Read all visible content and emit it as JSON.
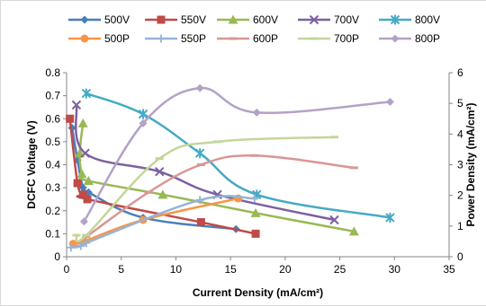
{
  "chart_data": {
    "type": "line",
    "xlabel": "Current Density (mA/cm²)",
    "ylabel_left": "DCFC Voltage (V)",
    "ylabel_right": "Power Density (mA/cm²)",
    "xlim": [
      0,
      35
    ],
    "ylim_left": [
      0,
      0.8
    ],
    "ylim_right": [
      0,
      6
    ],
    "x_ticks": [
      "0",
      "5",
      "10",
      "15",
      "20",
      "25",
      "30",
      "35"
    ],
    "y_left_ticks": [
      "0",
      "0.1",
      "0.2",
      "0.3",
      "0.4",
      "0.5",
      "0.6",
      "0.7",
      "0.8"
    ],
    "y_right_ticks": [
      "0",
      "1",
      "2",
      "3",
      "4",
      "5",
      "6"
    ],
    "grid": false,
    "legend_position": "top",
    "series": [
      {
        "name": "500V",
        "axis": "left",
        "color": "#4a7ebb",
        "marker": "diamond",
        "x": [
          0.5,
          1,
          1.5,
          2,
          7,
          15.5
        ],
        "y": [
          0.56,
          0.42,
          0.3,
          0.28,
          0.17,
          0.12
        ]
      },
      {
        "name": "550V",
        "axis": "left",
        "color": "#be4b48",
        "marker": "square",
        "x": [
          0.3,
          1,
          1.5,
          1.9,
          12.3,
          17.3
        ],
        "y": [
          0.6,
          0.32,
          0.27,
          0.25,
          0.15,
          0.1
        ]
      },
      {
        "name": "600V",
        "axis": "left",
        "color": "#98b954",
        "marker": "triangle",
        "x": [
          1.5,
          1.2,
          1.4,
          2,
          8.8,
          17.3,
          26.3
        ],
        "y": [
          0.58,
          0.45,
          0.36,
          0.33,
          0.27,
          0.19,
          0.11
        ]
      },
      {
        "name": "700V",
        "axis": "left",
        "color": "#7d60a0",
        "marker": "x",
        "x": [
          0.9,
          1.7,
          8.5,
          13.8,
          24.5
        ],
        "y": [
          0.66,
          0.45,
          0.37,
          0.27,
          0.16
        ]
      },
      {
        "name": "800V",
        "axis": "left",
        "color": "#46aac5",
        "marker": "asterisk",
        "x": [
          1.8,
          7,
          12.2,
          17.4,
          29.6
        ],
        "y": [
          0.71,
          0.62,
          0.45,
          0.27,
          0.17
        ]
      },
      {
        "name": "500P",
        "axis": "right",
        "color": "#f79646",
        "marker": "circle",
        "x": [
          0.6,
          1.6,
          7,
          15.7
        ],
        "y": [
          0.42,
          0.5,
          1.2,
          1.9
        ]
      },
      {
        "name": "550P",
        "axis": "right",
        "color": "#95b3d7",
        "marker": "plus",
        "x": [
          0.4,
          1.3,
          1.8,
          12.2,
          17.2
        ],
        "y": [
          0.3,
          0.35,
          0.45,
          1.85,
          1.9
        ]
      },
      {
        "name": "600P",
        "axis": "right",
        "color": "#d99694",
        "marker": "dash",
        "x": [
          1.8,
          7.5,
          12.3,
          17.2,
          26.3
        ],
        "y": [
          0.65,
          2.1,
          3,
          3.3,
          2.9
        ]
      },
      {
        "name": "700P",
        "axis": "right",
        "color": "#c3d69b",
        "marker": "dash",
        "x": [
          0.9,
          1.8,
          8.5,
          13.8,
          24.5
        ],
        "y": [
          0.7,
          0.7,
          3.2,
          3.75,
          3.9
        ]
      },
      {
        "name": "800P",
        "axis": "right",
        "color": "#b3a2c7",
        "marker": "diamond",
        "x": [
          1.6,
          7,
          12.2,
          17.4,
          29.6
        ],
        "y": [
          1.15,
          4.35,
          5.5,
          4.7,
          5.05
        ]
      }
    ]
  }
}
